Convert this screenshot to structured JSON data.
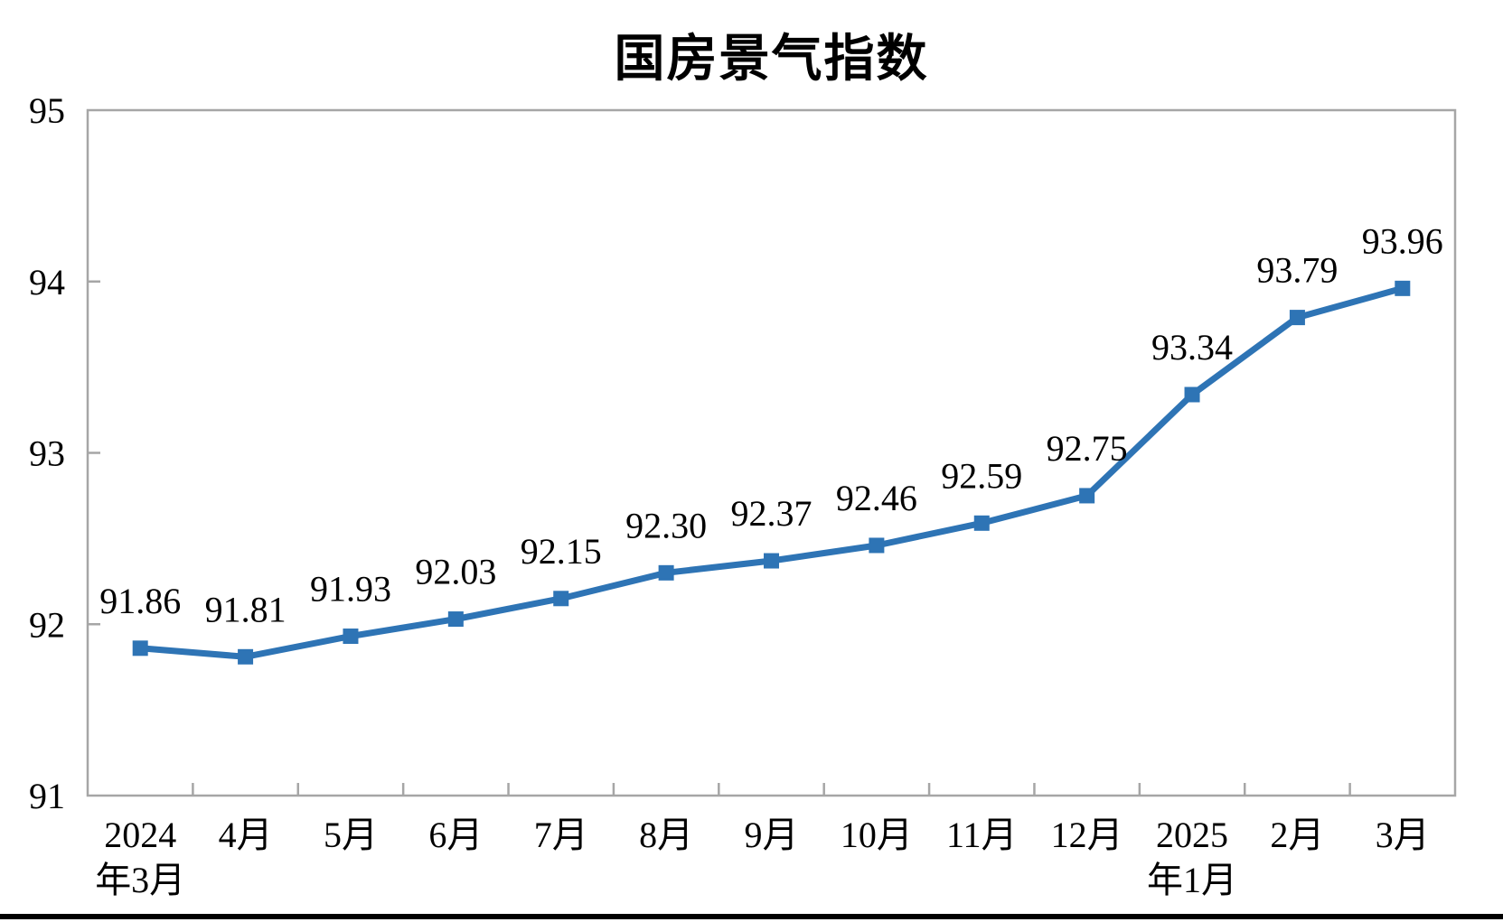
{
  "chart_data": {
    "type": "line",
    "title": "国房景气指数",
    "categories": [
      [
        "2024",
        "年3月"
      ],
      [
        "4月"
      ],
      [
        "5月"
      ],
      [
        "6月"
      ],
      [
        "7月"
      ],
      [
        "8月"
      ],
      [
        "9月"
      ],
      [
        "10月"
      ],
      [
        "11月"
      ],
      [
        "12月"
      ],
      [
        "2025",
        "年1月"
      ],
      [
        "2月"
      ],
      [
        "3月"
      ]
    ],
    "values": [
      91.86,
      91.81,
      91.93,
      92.03,
      92.15,
      92.3,
      92.37,
      92.46,
      92.59,
      92.75,
      93.34,
      93.79,
      93.96
    ],
    "point_labels": [
      "91.86",
      "91.81",
      "91.93",
      "92.03",
      "92.15",
      "92.30",
      "92.37",
      "92.46",
      "92.59",
      "92.75",
      "93.34",
      "93.79",
      "93.96"
    ],
    "xlabel": "",
    "ylabel": "",
    "ylim": [
      91,
      95
    ],
    "yticks": [
      91,
      92,
      93,
      94,
      95
    ],
    "grid": false,
    "legend": "none",
    "marker_shape": "square",
    "colors": {
      "line": "#2E74B5",
      "marker": "#2E74B5",
      "axis": "#A6A6A6",
      "text": "#000000",
      "page_rule": "#000000"
    }
  }
}
